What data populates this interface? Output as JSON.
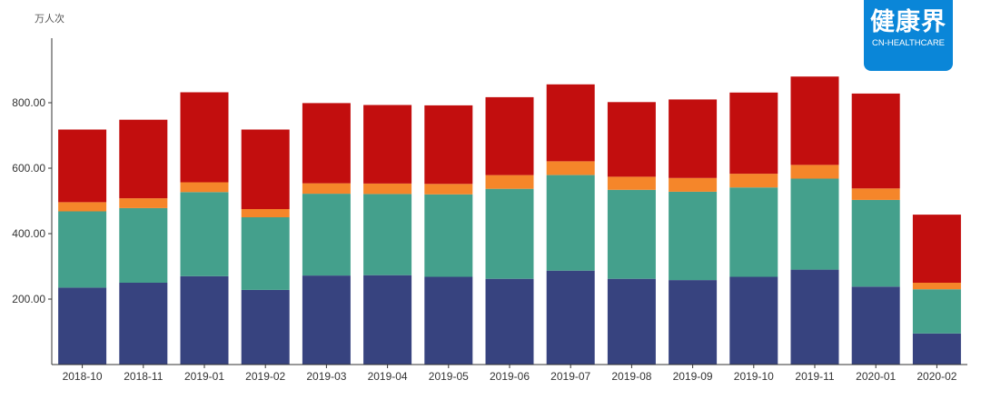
{
  "unit_label": "万人次",
  "logo": {
    "main": "健康界",
    "sub": "CN-HEALTHCARE",
    "color": "#0a86d8"
  },
  "chart_data": {
    "type": "bar",
    "stacked": true,
    "title": "",
    "xlabel": "",
    "ylabel": "万人次",
    "ylim": [
      0,
      1000
    ],
    "yticks": [
      200,
      400,
      600,
      800
    ],
    "ytick_labels": [
      "200.00",
      "400.00",
      "600.00",
      "800.00"
    ],
    "grid": false,
    "categories": [
      "2018-10",
      "2018-11",
      "2019-01",
      "2019-02",
      "2019-03",
      "2019-04",
      "2019-05",
      "2019-06",
      "2019-07",
      "2019-08",
      "2019-09",
      "2019-10",
      "2019-11",
      "2020-01",
      "2020-02"
    ],
    "series": [
      {
        "color": "#37437f",
        "values": [
          235,
          250,
          270,
          228,
          272,
          273,
          268,
          262,
          287,
          262,
          258,
          268,
          290,
          238,
          95
        ]
      },
      {
        "color": "#44a08c",
        "values": [
          233,
          228,
          257,
          222,
          250,
          248,
          252,
          275,
          292,
          272,
          270,
          273,
          278,
          265,
          135
        ]
      },
      {
        "color": "#f5862a",
        "values": [
          28,
          30,
          30,
          25,
          32,
          32,
          32,
          42,
          42,
          40,
          42,
          42,
          42,
          35,
          20
        ]
      },
      {
        "color": "#c20e0e",
        "values": [
          222,
          240,
          275,
          243,
          245,
          240,
          240,
          238,
          235,
          228,
          240,
          248,
          270,
          290,
          208
        ]
      }
    ]
  }
}
